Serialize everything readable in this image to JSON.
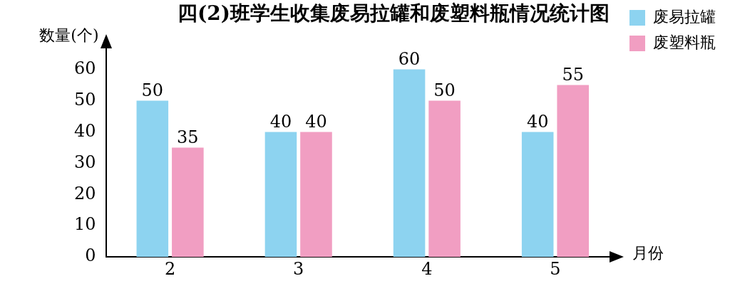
{
  "chart_data": {
    "type": "bar",
    "title": "四(2)班学生收集废易拉罐和废塑料瓶情况统计图",
    "xlabel": "月份",
    "ylabel": "数量(个)",
    "categories": [
      "2",
      "3",
      "4",
      "5"
    ],
    "series": [
      {
        "name": "废易拉罐",
        "color": "#8dd3f0",
        "values": [
          50,
          40,
          60,
          40
        ]
      },
      {
        "name": "废塑料瓶",
        "color": "#f19ec2",
        "values": [
          35,
          40,
          50,
          55
        ]
      }
    ],
    "ylim": [
      0,
      70
    ],
    "yticks": [
      0,
      10,
      20,
      30,
      40,
      50,
      60
    ],
    "grid": false,
    "legend": "top right",
    "data_labels": true
  }
}
